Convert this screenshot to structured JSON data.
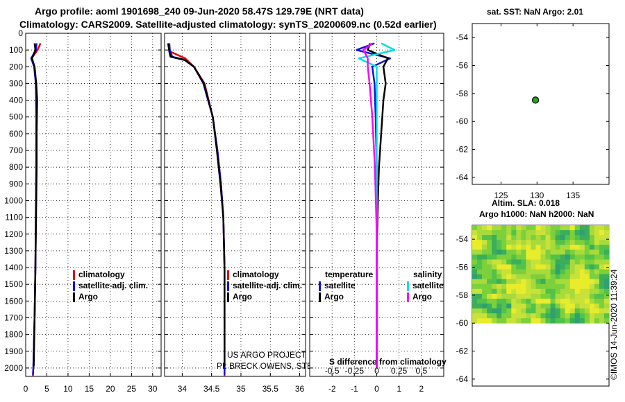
{
  "header": {
    "title_line1": "Argo profile: aoml 1901698_240 09-Jun-2020 58.47S 129.79E (NRT data)",
    "title_line2": "Climatology: CARS2009. Satellite-adjusted climatology: synTS_20200609.nc (0.52d earlier)"
  },
  "colors": {
    "climatology": "#e00000",
    "satellite_adj": "#1010e0",
    "argo": "#000000",
    "sal_satellite": "#00e0e0",
    "sal_argo": "#ff00ff",
    "grid": "#000000",
    "float_marker": "#22aa22"
  },
  "temperature_panel": {
    "legend": [
      "climatology",
      "satellite-adj. clim.",
      "Argo"
    ]
  },
  "salinity_panel": {
    "legend": [
      "climatology",
      "satellite-adj. clim.",
      "Argo"
    ],
    "note_line1": "US ARGO PROJECT",
    "note_line2": "PI: BRECK OWENS, STEVE JAYNE, AND P.E. ROBBINS"
  },
  "difference_panel": {
    "legend_temp_title": "temperature",
    "legend_sal_title": "salinity",
    "legend_temp_items": [
      "satellite",
      "Argo"
    ],
    "legend_sal_items": [
      "satellite",
      "Argo"
    ],
    "sal_axis_title": "S difference from climatology"
  },
  "map_panel": {
    "title": "sat. SST: NaN Argo: 2.01",
    "float_lon": 129.79,
    "float_lat": -58.47
  },
  "sla_panel": {
    "title_line1": "Altim. SLA: 0.018",
    "title_line2": "Argo h1000: NaN h2000: NaN"
  },
  "footer": {
    "imos_stamp": "©IMOS 14-Jun-2020 11:39:24"
  },
  "chart_data": [
    {
      "type": "line",
      "name": "temperature_profile",
      "xlim": [
        0,
        32
      ],
      "ylim": [
        2050,
        0
      ],
      "xticks": [
        0,
        5,
        10,
        15,
        20,
        25,
        30
      ],
      "yticks": [
        0,
        100,
        200,
        300,
        400,
        500,
        600,
        700,
        800,
        900,
        1000,
        1100,
        1200,
        1300,
        1400,
        1500,
        1600,
        1700,
        1800,
        1900,
        2000
      ],
      "ylabel_ticks": true,
      "series": [
        {
          "name": "climatology",
          "color": "#e00000",
          "points": [
            [
              3.5,
              60
            ],
            [
              2.8,
              100
            ],
            [
              1.4,
              150
            ],
            [
              2.0,
              200
            ],
            [
              2.4,
              300
            ],
            [
              2.5,
              500
            ],
            [
              2.5,
              800
            ],
            [
              2.4,
              1100
            ],
            [
              2.3,
              1400
            ],
            [
              2.1,
              1700
            ],
            [
              1.8,
              2000
            ],
            [
              1.7,
              2050
            ]
          ]
        },
        {
          "name": "satellite-adj. clim.",
          "color": "#1010e0",
          "points": [
            [
              2.6,
              60
            ],
            [
              2.4,
              100
            ],
            [
              1.3,
              150
            ],
            [
              2.0,
              200
            ],
            [
              2.4,
              300
            ],
            [
              2.5,
              500
            ],
            [
              2.5,
              800
            ],
            [
              2.4,
              1100
            ],
            [
              2.3,
              1400
            ],
            [
              2.1,
              1700
            ],
            [
              1.8,
              2000
            ],
            [
              1.7,
              2040
            ]
          ]
        },
        {
          "name": "Argo",
          "color": "#000000",
          "points": [
            [
              2.1,
              60
            ],
            [
              2.3,
              100
            ],
            [
              1.5,
              150
            ],
            [
              2.1,
              200
            ],
            [
              2.5,
              300
            ],
            [
              2.7,
              400
            ],
            [
              2.6,
              600
            ],
            [
              2.6,
              800
            ],
            [
              2.5,
              1000
            ],
            [
              2.4,
              1200
            ],
            [
              2.3,
              1400
            ],
            [
              2.1,
              1700
            ],
            [
              1.9,
              1990
            ]
          ]
        }
      ]
    },
    {
      "type": "line",
      "name": "salinity_profile",
      "xlim": [
        33.7,
        36.1
      ],
      "ylim": [
        2050,
        0
      ],
      "xticks": [
        34,
        34.5,
        35,
        35.5,
        36
      ],
      "series": [
        {
          "name": "climatology",
          "color": "#e00000",
          "points": [
            [
              33.8,
              110
            ],
            [
              34.05,
              150
            ],
            [
              34.2,
              200
            ],
            [
              34.38,
              300
            ],
            [
              34.52,
              500
            ],
            [
              34.6,
              700
            ],
            [
              34.66,
              900
            ],
            [
              34.7,
              1100
            ],
            [
              34.72,
              1400
            ],
            [
              34.72,
              1700
            ],
            [
              34.72,
              2000
            ],
            [
              34.72,
              2050
            ]
          ]
        },
        {
          "name": "satellite-adj. clim.",
          "color": "#1010e0",
          "points": [
            [
              33.78,
              60
            ],
            [
              33.79,
              100
            ],
            [
              33.83,
              140
            ],
            [
              34.05,
              160
            ],
            [
              34.2,
              200
            ],
            [
              34.36,
              300
            ],
            [
              34.52,
              500
            ],
            [
              34.6,
              700
            ],
            [
              34.66,
              900
            ],
            [
              34.7,
              1100
            ],
            [
              34.72,
              1400
            ],
            [
              34.72,
              1700
            ],
            [
              34.72,
              2000
            ],
            [
              34.72,
              2040
            ]
          ]
        },
        {
          "name": "Argo",
          "color": "#000000",
          "points": [
            [
              33.76,
              60
            ],
            [
              33.78,
              110
            ],
            [
              33.8,
              140
            ],
            [
              34.04,
              160
            ],
            [
              34.2,
              200
            ],
            [
              34.37,
              300
            ],
            [
              34.52,
              500
            ],
            [
              34.59,
              700
            ],
            [
              34.65,
              900
            ],
            [
              34.7,
              1100
            ],
            [
              34.72,
              1400
            ],
            [
              34.72,
              1700
            ],
            [
              34.72,
              1990
            ]
          ]
        }
      ]
    },
    {
      "type": "line",
      "name": "difference_profile",
      "xlim": [
        -3,
        3
      ],
      "ylim": [
        2050,
        0
      ],
      "xticks_temp": [
        -2,
        -1,
        0,
        1,
        2
      ],
      "xticks_sal": [
        -0.5,
        -0.25,
        0,
        0.25,
        0.5
      ],
      "series": [
        {
          "name": "temperature satellite",
          "color": "#1010e0",
          "points": [
            [
              -0.1,
              60
            ],
            [
              -0.9,
              100
            ],
            [
              0.6,
              150
            ],
            [
              -0.2,
              200
            ],
            [
              -0.1,
              300
            ],
            [
              -0.05,
              500
            ],
            [
              0,
              800
            ],
            [
              0,
              1200
            ],
            [
              0,
              1700
            ],
            [
              0,
              2000
            ]
          ]
        },
        {
          "name": "temperature Argo",
          "color": "#000000",
          "points": [
            [
              -0.3,
              60
            ],
            [
              -0.4,
              100
            ],
            [
              0.5,
              150
            ],
            [
              0.3,
              200
            ],
            [
              0.4,
              300
            ],
            [
              0.3,
              400
            ],
            [
              0.2,
              600
            ],
            [
              0.1,
              800
            ],
            [
              0.05,
              1000
            ],
            [
              0,
              1300
            ],
            [
              0,
              1700
            ],
            [
              0,
              2000
            ]
          ]
        },
        {
          "name": "salinity satellite",
          "color": "#00e0e0",
          "points": [
            [
              0.05,
              60
            ],
            [
              0.2,
              100
            ],
            [
              -0.2,
              150
            ],
            [
              0,
              200
            ],
            [
              0,
              400
            ],
            [
              0,
              800
            ],
            [
              0,
              1200
            ],
            [
              0,
              1700
            ],
            [
              0,
              2000
            ]
          ]
        },
        {
          "name": "salinity Argo",
          "color": "#ff00ff",
          "points": [
            [
              -0.05,
              60
            ],
            [
              -0.15,
              100
            ],
            [
              -0.1,
              150
            ],
            [
              -0.1,
              200
            ],
            [
              -0.08,
              300
            ],
            [
              -0.05,
              500
            ],
            [
              -0.02,
              800
            ],
            [
              0,
              1200
            ],
            [
              0,
              1700
            ],
            [
              0,
              2000
            ]
          ]
        }
      ]
    },
    {
      "type": "scatter",
      "name": "location_map",
      "xlim": [
        121,
        140
      ],
      "ylim": [
        -64.5,
        -53
      ],
      "xticks": [
        125,
        130,
        135
      ],
      "yticks": [
        -54,
        -56,
        -58,
        -60,
        -62,
        -64
      ],
      "points": [
        [
          129.79,
          -58.47
        ]
      ]
    },
    {
      "type": "heatmap",
      "name": "sla_map",
      "ylim": [
        -64.5,
        -53
      ],
      "yticks": [
        -54,
        -56,
        -58,
        -60,
        -62,
        -64
      ],
      "data_extent_lat": [
        -60,
        -53
      ]
    }
  ]
}
